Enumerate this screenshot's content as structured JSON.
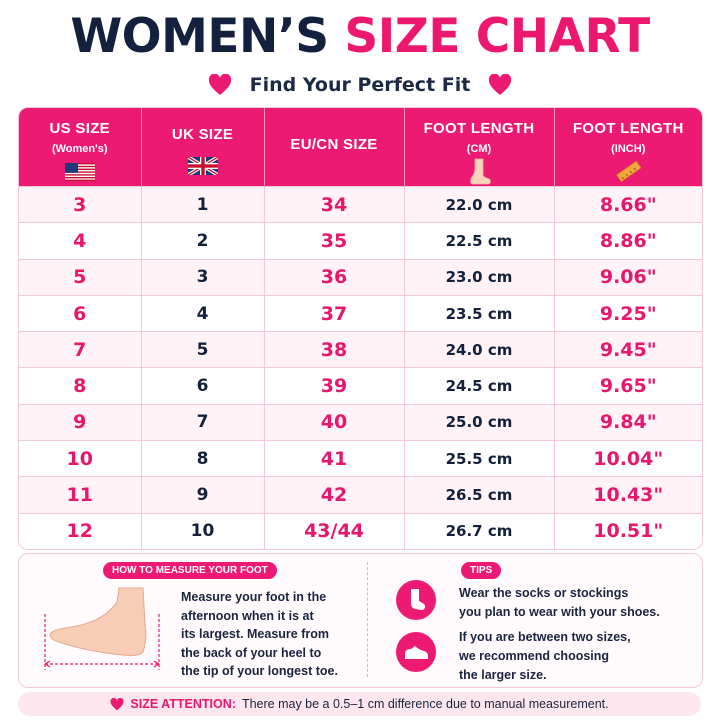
{
  "title": {
    "part1": "WOMEN’S",
    "part2": "SIZE CHART"
  },
  "subtitle": "Find Your Perfect Fit",
  "colors": {
    "brand_pink": "#ec1a73",
    "navy": "#13213f",
    "row_tint": "#fff3f7"
  },
  "table": {
    "headers": [
      {
        "main": "US SIZE",
        "sub": "(Women's)",
        "icon": "us-flag-icon"
      },
      {
        "main": "UK SIZE",
        "sub": "",
        "icon": "uk-flag-icon"
      },
      {
        "main": "EU/CN SIZE",
        "sub": "",
        "icon": ""
      },
      {
        "main": "FOOT LENGTH",
        "sub": "(CM)",
        "icon": "foot-icon"
      },
      {
        "main": "FOOT LENGTH",
        "sub": "(INCH)",
        "icon": "ruler-icon"
      }
    ],
    "rows": [
      {
        "us": "3",
        "uk": "1",
        "eu": "34",
        "cm": "22.0 cm",
        "inch": "8.66\""
      },
      {
        "us": "4",
        "uk": "2",
        "eu": "35",
        "cm": "22.5 cm",
        "inch": "8.86\""
      },
      {
        "us": "5",
        "uk": "3",
        "eu": "36",
        "cm": "23.0 cm",
        "inch": "9.06\""
      },
      {
        "us": "6",
        "uk": "4",
        "eu": "37",
        "cm": "23.5 cm",
        "inch": "9.25\""
      },
      {
        "us": "7",
        "uk": "5",
        "eu": "38",
        "cm": "24.0 cm",
        "inch": "9.45\""
      },
      {
        "us": "8",
        "uk": "6",
        "eu": "39",
        "cm": "24.5 cm",
        "inch": "9.65\""
      },
      {
        "us": "9",
        "uk": "7",
        "eu": "40",
        "cm": "25.0 cm",
        "inch": "9.84\""
      },
      {
        "us": "10",
        "uk": "8",
        "eu": "41",
        "cm": "25.5 cm",
        "inch": "10.04\""
      },
      {
        "us": "11",
        "uk": "9",
        "eu": "42",
        "cm": "26.5 cm",
        "inch": "10.43\""
      },
      {
        "us": "12",
        "uk": "10",
        "eu": "43/44",
        "cm": "26.7 cm",
        "inch": "10.51\""
      }
    ]
  },
  "measure": {
    "heading": "HOW TO MEASURE YOUR FOOT",
    "lines": [
      "Measure your foot in the",
      "afternoon when it is at",
      "its largest. Measure from",
      "the back of your heel to",
      "the tip of your longest toe."
    ]
  },
  "tips": {
    "heading": "TIPS",
    "tip1": [
      "Wear the socks or stockings",
      "you plan to wear with your shoes."
    ],
    "tip2": [
      "If you are between two sizes,",
      "we recommend choosing",
      "the larger size."
    ]
  },
  "attention": {
    "label": "SIZE ATTENTION:",
    "text": "There may be a 0.5–1 cm difference due to manual measurement."
  }
}
